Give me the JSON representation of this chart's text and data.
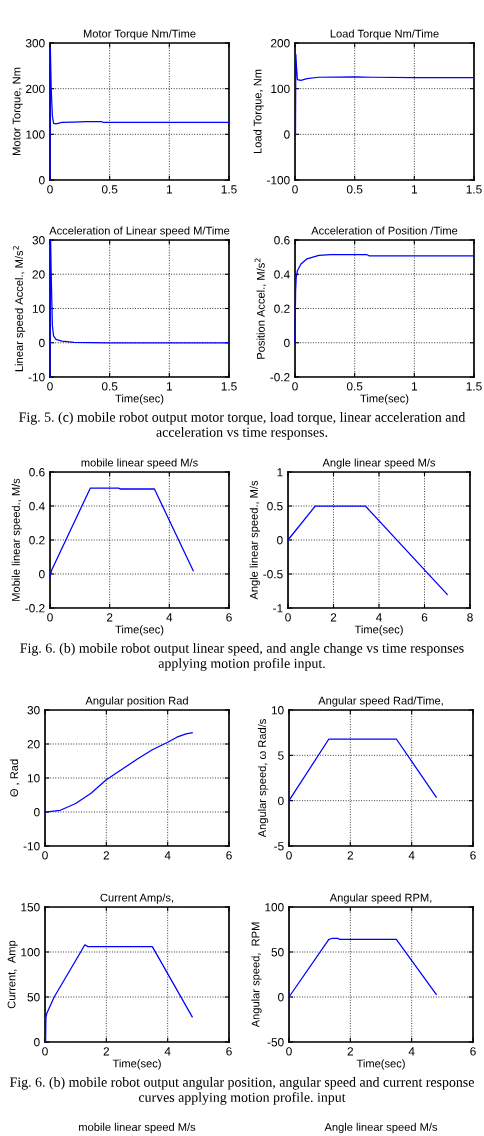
{
  "chart_data": [
    {
      "type": "line",
      "title": "Motor Torque Nm/Time",
      "ylabel": "Motor Torque, Nm",
      "x": [
        0,
        0.003,
        0.01,
        0.02,
        0.03,
        0.05,
        0.1,
        0.2,
        0.3,
        0.43,
        0.45,
        1.0,
        1.5
      ],
      "series": [
        {
          "color": "#0000ff",
          "values": [
            0,
            290,
            200,
            140,
            124,
            123,
            126,
            127,
            128,
            128,
            126,
            126,
            126
          ]
        }
      ],
      "xlim": [
        0,
        1.5
      ],
      "xticks": [
        0,
        0.5,
        1,
        1.5
      ],
      "ylim": [
        0,
        300
      ],
      "yticks": [
        0,
        100,
        200,
        300
      ],
      "grid": true
    },
    {
      "type": "line",
      "title": "Load Torque Nm/Time",
      "ylabel": "Load Torque, Nm",
      "x": [
        0.004,
        0.007,
        0.012,
        0.02,
        0.05,
        0.1,
        0.2,
        0.5,
        0.65,
        1.0,
        1.5
      ],
      "series": [
        {
          "color": "#0000ff",
          "values": [
            0,
            175,
            150,
            120,
            118,
            122,
            125,
            126,
            125,
            124,
            124
          ]
        }
      ],
      "xlim": [
        0,
        1.5
      ],
      "xticks": [
        0,
        0.5,
        1,
        1.5
      ],
      "ylim": [
        -100,
        200
      ],
      "yticks": [
        -100,
        0,
        100,
        200
      ],
      "grid": true
    },
    {
      "type": "line",
      "title": "Acceleration of Linear speed M/Time",
      "xlabel": "Time(sec)",
      "ylabel": "Linear speed Accel., M/s$^{2}$",
      "annotations": [
        "Fig. 5. (c) mobile robot output motor torque, load torque, linear acceleration and acceleration vs time responses."
      ],
      "x": [
        0,
        0.005,
        0.01,
        0.02,
        0.03,
        0.05,
        0.1,
        0.2,
        0.5,
        1.5
      ],
      "series": [
        {
          "color": "#0000ff",
          "values": [
            -10,
            30,
            20,
            5,
            2,
            1,
            0.5,
            0.1,
            0,
            0
          ]
        }
      ],
      "xlim": [
        0,
        1.5
      ],
      "xticks": [
        0,
        0.5,
        1,
        1.5
      ],
      "ylim": [
        -10,
        30
      ],
      "yticks": [
        -10,
        0,
        10,
        20,
        30
      ],
      "grid": true
    },
    {
      "type": "line",
      "title": "Acceleration of Position /Time",
      "xlabel": "Time(sec)",
      "ylabel": "Position Accel., M/s$^{2}$",
      "x": [
        0,
        0.005,
        0.01,
        0.02,
        0.05,
        0.1,
        0.2,
        0.3,
        0.6,
        0.62,
        1.5
      ],
      "series": [
        {
          "color": "#0000ff",
          "values": [
            0,
            0.3,
            0.38,
            0.42,
            0.46,
            0.49,
            0.51,
            0.515,
            0.515,
            0.508,
            0.508
          ]
        }
      ],
      "xlim": [
        0,
        1.5
      ],
      "xticks": [
        0,
        0.5,
        1,
        1.5
      ],
      "ylim": [
        -0.2,
        0.6
      ],
      "yticks": [
        -0.2,
        0,
        0.2,
        0.4,
        0.6
      ],
      "grid": true
    },
    {
      "type": "line",
      "title": "mobile linear speed M/s",
      "xlabel": "Time(sec)",
      "ylabel": "Mobile linear speed., M/s",
      "annotations": [
        "Fig. 6. (b) mobile robot output linear speed, and angle change vs time responses applying motion profile input."
      ],
      "x": [
        0,
        0.05,
        1.35,
        2.3,
        2.35,
        3.5,
        4.8
      ],
      "series": [
        {
          "color": "#0000ff",
          "values": [
            -0.02,
            0.02,
            0.505,
            0.505,
            0.5,
            0.5,
            0.02
          ]
        }
      ],
      "xlim": [
        0,
        6
      ],
      "xticks": [
        0,
        2,
        4,
        6
      ],
      "ylim": [
        -0.2,
        0.6
      ],
      "yticks": [
        -0.2,
        0,
        0.2,
        0.4,
        0.6
      ],
      "grid": true
    },
    {
      "type": "line",
      "title": "Angle linear speed M/s",
      "xlabel": "Time(sec)",
      "ylabel": "Angle linear speed., M/s",
      "x": [
        0,
        1.2,
        3.4,
        7
      ],
      "series": [
        {
          "color": "#0000ff",
          "values": [
            0,
            0.5,
            0.5,
            -0.8
          ]
        }
      ],
      "xlim": [
        0,
        8
      ],
      "xticks": [
        0,
        2,
        4,
        6,
        8
      ],
      "ylim": [
        -1,
        1
      ],
      "yticks": [
        -1,
        -0.5,
        0,
        0.5,
        1
      ],
      "grid": true
    },
    {
      "type": "line",
      "title": "Angular position Rad",
      "ylabel": "Θ , Rad",
      "x": [
        0,
        0.5,
        1,
        1.5,
        2,
        2.5,
        3,
        3.5,
        4,
        4.3,
        4.6,
        4.8
      ],
      "series": [
        {
          "color": "#0000ff",
          "values": [
            0,
            0.5,
            2.5,
            5.5,
            9.5,
            12.5,
            15.5,
            18.3,
            20.5,
            22,
            23,
            23.3
          ]
        }
      ],
      "xlim": [
        0,
        6
      ],
      "xticks": [
        0,
        2,
        4,
        6
      ],
      "ylim": [
        -10,
        30
      ],
      "yticks": [
        -10,
        0,
        10,
        20,
        30
      ],
      "grid": true
    },
    {
      "type": "line",
      "title": "Angular speed Rad/Time,",
      "ylabel": "Angular speed, ω Rad/s",
      "x": [
        0,
        1.3,
        3.5,
        4.8
      ],
      "series": [
        {
          "color": "#0000ff",
          "values": [
            0,
            6.8,
            6.8,
            0.4
          ]
        }
      ],
      "xlim": [
        0,
        6
      ],
      "xticks": [
        0,
        2,
        4,
        6
      ],
      "ylim": [
        -5,
        10
      ],
      "yticks": [
        -5,
        0,
        5,
        10
      ],
      "grid": true
    },
    {
      "type": "line",
      "title": "Current Amp/s,",
      "xlabel": "Time(sec)",
      "ylabel": "Current,  Amp",
      "annotations": [
        "Fig. 6. (b) mobile robot output angular position, angular speed and current response curves applying motion profile. input",
        "mobile linear speed M/s"
      ],
      "x": [
        0.02,
        0.03,
        0.06,
        0.3,
        1.25,
        1.3,
        1.4,
        3.5,
        4.8
      ],
      "series": [
        {
          "color": "#0000ff",
          "values": [
            0,
            27,
            32,
            50,
            105,
            108,
            106,
            106,
            28
          ]
        }
      ],
      "xlim": [
        0,
        6
      ],
      "xticks": [
        0,
        2,
        4,
        6
      ],
      "ylim": [
        0,
        150
      ],
      "yticks": [
        0,
        50,
        100,
        150
      ],
      "grid": true
    },
    {
      "type": "line",
      "title": "Angular speed RPM,",
      "xlabel": "Time(sec)",
      "ylabel": "Angular speed,  RPM",
      "annotations": [
        "Angle linear speed M/s"
      ],
      "x": [
        0,
        1.3,
        1.4,
        1.6,
        1.65,
        3.5,
        4.8
      ],
      "series": [
        {
          "color": "#0000ff",
          "values": [
            0,
            64,
            65,
            65,
            64,
            64,
            3
          ]
        }
      ],
      "xlim": [
        0,
        6
      ],
      "xticks": [
        0,
        2,
        4,
        6
      ],
      "ylim": [
        -50,
        100
      ],
      "yticks": [
        -50,
        0,
        50,
        100
      ],
      "grid": true
    }
  ]
}
